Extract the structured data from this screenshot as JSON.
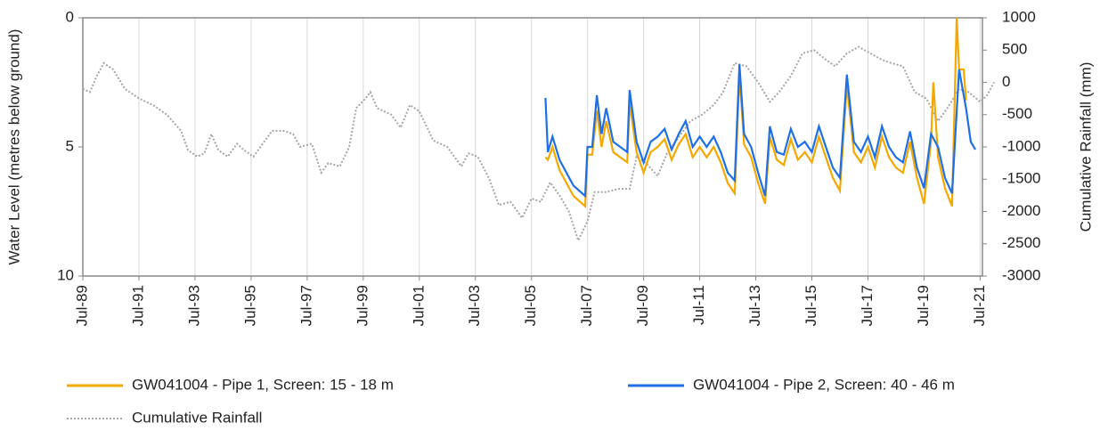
{
  "chart_data": {
    "type": "line",
    "ylabel": "Water Level (metres below ground)",
    "y2label": "Cumulative Rainfall (mm)",
    "xlim": [
      "1989-07",
      "2021-08"
    ],
    "xticks": [
      {
        "value": "1989-07",
        "label": "Jul-89"
      },
      {
        "value": "1991-07",
        "label": "Jul-91"
      },
      {
        "value": "1993-07",
        "label": "Jul-93"
      },
      {
        "value": "1995-07",
        "label": "Jul-95"
      },
      {
        "value": "1997-07",
        "label": "Jul-97"
      },
      {
        "value": "1999-07",
        "label": "Jul-99"
      },
      {
        "value": "2001-07",
        "label": "Jul-01"
      },
      {
        "value": "2003-07",
        "label": "Jul-03"
      },
      {
        "value": "2005-07",
        "label": "Jul-05"
      },
      {
        "value": "2007-07",
        "label": "Jul-07"
      },
      {
        "value": "2009-07",
        "label": "Jul-09"
      },
      {
        "value": "2011-07",
        "label": "Jul-11"
      },
      {
        "value": "2013-07",
        "label": "Jul-13"
      },
      {
        "value": "2015-07",
        "label": "Jul-15"
      },
      {
        "value": "2017-07",
        "label": "Jul-17"
      },
      {
        "value": "2019-07",
        "label": "Jul-19"
      },
      {
        "value": "2021-07",
        "label": "Jul-21"
      }
    ],
    "ylim": [
      0,
      10
    ],
    "y_inverted": true,
    "yticks": [
      0,
      5,
      10
    ],
    "y2lim": [
      -3000,
      1000
    ],
    "y2ticks": [
      -3000,
      -2500,
      -2000,
      -1500,
      -1000,
      -500,
      0,
      500,
      1000
    ],
    "grid": "x",
    "legend": "bottom",
    "series": [
      {
        "name": "GW041004 - Pipe 1, Screen: 15 - 18 m",
        "color": "#f5a800",
        "line_style": "solid",
        "x": [
          "2006-01",
          "2006-02",
          "2006-04",
          "2006-07",
          "2006-10",
          "2007-01",
          "2007-06",
          "2007-07",
          "2007-09",
          "2007-11",
          "2008-01",
          "2008-03",
          "2008-06",
          "2008-09",
          "2008-12",
          "2009-01",
          "2009-04",
          "2009-07",
          "2009-10",
          "2010-01",
          "2010-04",
          "2010-07",
          "2010-10",
          "2011-01",
          "2011-04",
          "2011-07",
          "2011-10",
          "2012-01",
          "2012-04",
          "2012-07",
          "2012-10",
          "2012-12",
          "2013-02",
          "2013-05",
          "2013-08",
          "2013-11",
          "2014-01",
          "2014-04",
          "2014-07",
          "2014-10",
          "2015-01",
          "2015-04",
          "2015-07",
          "2015-10",
          "2016-01",
          "2016-04",
          "2016-07",
          "2016-10",
          "2017-01",
          "2017-04",
          "2017-07",
          "2017-10",
          "2018-01",
          "2018-04",
          "2018-07",
          "2018-10",
          "2019-01",
          "2019-04",
          "2019-07",
          "2019-10",
          "2019-11",
          "2020-01",
          "2020-04",
          "2020-07",
          "2020-09",
          "2020-10",
          "2020-12",
          "2021-01"
        ],
        "values": [
          5.4,
          5.5,
          5.0,
          5.9,
          6.4,
          6.9,
          7.3,
          5.3,
          5.3,
          3.6,
          5.0,
          4.0,
          5.2,
          5.4,
          5.6,
          3.3,
          5.2,
          6.0,
          5.2,
          5.0,
          4.7,
          5.5,
          4.9,
          4.5,
          5.4,
          5.0,
          5.4,
          5.0,
          5.6,
          6.4,
          6.8,
          2.2,
          4.9,
          5.4,
          6.4,
          7.2,
          4.6,
          5.5,
          5.7,
          4.7,
          5.5,
          5.2,
          5.6,
          4.6,
          5.4,
          6.2,
          6.7,
          2.6,
          5.2,
          5.6,
          5.0,
          5.8,
          4.6,
          5.4,
          5.8,
          6.0,
          4.8,
          6.2,
          7.2,
          4.8,
          2.5,
          5.4,
          6.6,
          7.3,
          0,
          2.0,
          2.0,
          3.2
        ]
      },
      {
        "name": "GW041004 - Pipe 2, Screen: 40 - 46 m",
        "color": "#1f6fe6",
        "line_style": "solid",
        "x": [
          "2006-01",
          "2006-02",
          "2006-04",
          "2006-07",
          "2006-10",
          "2007-01",
          "2007-06",
          "2007-07",
          "2007-09",
          "2007-11",
          "2008-01",
          "2008-03",
          "2008-06",
          "2008-09",
          "2008-12",
          "2009-01",
          "2009-04",
          "2009-07",
          "2009-10",
          "2010-01",
          "2010-04",
          "2010-07",
          "2010-10",
          "2011-01",
          "2011-04",
          "2011-07",
          "2011-10",
          "2012-01",
          "2012-04",
          "2012-07",
          "2012-10",
          "2012-12",
          "2013-02",
          "2013-05",
          "2013-08",
          "2013-11",
          "2014-01",
          "2014-04",
          "2014-07",
          "2014-10",
          "2015-01",
          "2015-04",
          "2015-07",
          "2015-10",
          "2016-01",
          "2016-04",
          "2016-07",
          "2016-10",
          "2017-01",
          "2017-04",
          "2017-07",
          "2017-10",
          "2018-01",
          "2018-04",
          "2018-07",
          "2018-10",
          "2019-01",
          "2019-04",
          "2019-07",
          "2019-10",
          "2020-01",
          "2020-04",
          "2020-07",
          "2020-10",
          "2021-01",
          "2021-03",
          "2021-05"
        ],
        "values": [
          3.1,
          5.2,
          4.6,
          5.5,
          6.0,
          6.5,
          6.9,
          5.0,
          5.0,
          3.0,
          4.5,
          3.5,
          4.8,
          5.0,
          5.2,
          2.8,
          4.8,
          5.6,
          4.8,
          4.6,
          4.3,
          5.1,
          4.5,
          4.0,
          5.0,
          4.6,
          5.0,
          4.6,
          5.2,
          6.0,
          6.3,
          1.8,
          4.5,
          5.0,
          6.0,
          6.9,
          4.2,
          5.2,
          5.3,
          4.3,
          5.0,
          4.8,
          5.2,
          4.2,
          5.0,
          5.8,
          6.2,
          2.2,
          4.8,
          5.2,
          4.6,
          5.4,
          4.2,
          5.0,
          5.4,
          5.6,
          4.4,
          5.8,
          6.6,
          4.5,
          5.0,
          6.2,
          6.8,
          2.0,
          3.5,
          4.8,
          5.1
        ]
      },
      {
        "name": "Cumulative Rainfall",
        "color": "#a6a6a6",
        "line_style": "dotted",
        "axis": "y2",
        "x": [
          "1989-07",
          "1989-10",
          "1990-01",
          "1990-04",
          "1990-08",
          "1991-01",
          "1991-07",
          "1992-01",
          "1992-07",
          "1993-01",
          "1993-04",
          "1993-08",
          "1993-11",
          "1994-02",
          "1994-05",
          "1994-09",
          "1995-01",
          "1995-04",
          "1995-08",
          "1995-11",
          "1996-04",
          "1996-09",
          "1997-01",
          "1997-04",
          "1997-09",
          "1998-01",
          "1998-04",
          "1998-09",
          "1999-01",
          "1999-04",
          "1999-08",
          "1999-10",
          "2000-01",
          "2000-07",
          "2000-11",
          "2001-03",
          "2001-07",
          "2002-01",
          "2002-07",
          "2003-01",
          "2003-04",
          "2003-08",
          "2004-01",
          "2004-05",
          "2004-10",
          "2005-03",
          "2005-07",
          "2005-11",
          "2006-03",
          "2006-07",
          "2006-11",
          "2007-03",
          "2007-07",
          "2007-10",
          "2008-03",
          "2008-08",
          "2009-01",
          "2009-04",
          "2009-08",
          "2010-01",
          "2010-05",
          "2010-10",
          "2011-03",
          "2011-08",
          "2012-01",
          "2012-05",
          "2012-10",
          "2013-03",
          "2013-08",
          "2014-01",
          "2014-05",
          "2014-10",
          "2015-03",
          "2015-08",
          "2016-01",
          "2016-05",
          "2016-10",
          "2017-03",
          "2017-08",
          "2018-01",
          "2018-05",
          "2018-10",
          "2019-03",
          "2019-08",
          "2020-01",
          "2020-05",
          "2020-10",
          "2021-02",
          "2021-07",
          "2021-10",
          "2022-01"
        ],
        "values": [
          -100,
          -150,
          100,
          300,
          200,
          -100,
          -250,
          -350,
          -500,
          -750,
          -1050,
          -1150,
          -1100,
          -800,
          -1050,
          -1150,
          -950,
          -1050,
          -1150,
          -1000,
          -750,
          -750,
          -800,
          -1000,
          -950,
          -1400,
          -1250,
          -1300,
          -1000,
          -400,
          -250,
          -150,
          -400,
          -500,
          -700,
          -350,
          -450,
          -900,
          -1000,
          -1300,
          -1100,
          -1150,
          -1500,
          -1900,
          -1850,
          -2100,
          -1800,
          -1850,
          -1550,
          -1750,
          -2000,
          -2450,
          -2150,
          -1700,
          -1700,
          -1650,
          -1650,
          -1150,
          -1250,
          -1450,
          -1100,
          -850,
          -600,
          -500,
          -350,
          -150,
          300,
          250,
          0,
          -300,
          -150,
          100,
          450,
          500,
          350,
          250,
          450,
          550,
          450,
          350,
          300,
          250,
          -150,
          -250,
          -600,
          -400,
          -100,
          -150,
          -300,
          -200,
          0
        ]
      }
    ]
  }
}
